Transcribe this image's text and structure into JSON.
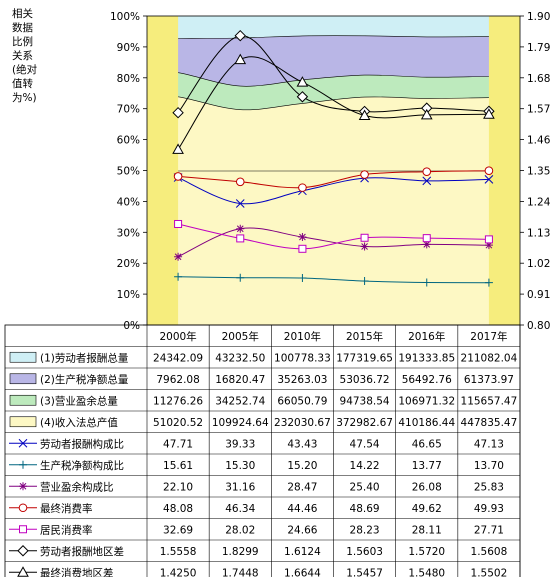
{
  "chart_data": {
    "type": "area",
    "y_axis_title": "相关数据比例关系(绝对值转为%)",
    "categories": [
      "2000年",
      "2005年",
      "2010年",
      "2015年",
      "2016年",
      "2017年"
    ],
    "y_left": {
      "ylim": [
        0,
        100
      ],
      "ticks": [
        "0%",
        "10%",
        "20%",
        "30%",
        "40%",
        "50%",
        "60%",
        "70%",
        "80%",
        "90%",
        "100%"
      ]
    },
    "y_right": {
      "ylim": [
        0.8,
        1.9
      ],
      "ticks": [
        "0.80",
        "0.91",
        "1.02",
        "1.13",
        "1.24",
        "1.35",
        "1.46",
        "1.57",
        "1.68",
        "1.79",
        "1.90"
      ]
    },
    "stacked_shares": {
      "labor": [
        47.71,
        39.33,
        43.43,
        47.54,
        46.65,
        47.13
      ],
      "tax": [
        15.61,
        15.3,
        15.2,
        14.22,
        13.77,
        13.7
      ],
      "surplus": [
        22.1,
        31.16,
        28.47,
        25.4,
        26.08,
        25.83
      ]
    },
    "series": [
      {
        "name": "(1)劳动者报酬总量",
        "color": "#cfeff5",
        "marker": "area",
        "display": [
          "24342.09",
          "43232.50",
          "100778.33",
          "177319.65",
          "191333.85",
          "211082.04"
        ]
      },
      {
        "name": "(2)生产税净额总量",
        "color": "#b9b6e6",
        "marker": "area",
        "display": [
          "7962.08",
          "16820.47",
          "35263.03",
          "53036.72",
          "56492.76",
          "61373.97"
        ]
      },
      {
        "name": "(3)营业盈余总量",
        "color": "#bdeabd",
        "marker": "area",
        "display": [
          "11276.26",
          "34252.74",
          "66050.79",
          "94738.54",
          "106971.32",
          "115657.47"
        ]
      },
      {
        "name": "(4)收入法总产值",
        "color": "#fdf8c4",
        "marker": "area",
        "display": [
          "51020.52",
          "109924.64",
          "232030.67",
          "372982.67",
          "410186.44",
          "447835.47"
        ]
      },
      {
        "name": "劳动者报酬构成比",
        "color": "#0000c0",
        "marker": "x",
        "axis": "left",
        "values": [
          47.71,
          39.33,
          43.43,
          47.54,
          46.65,
          47.13
        ],
        "display": [
          "47.71",
          "39.33",
          "43.43",
          "47.54",
          "46.65",
          "47.13"
        ]
      },
      {
        "name": "生产税净额构成比",
        "color": "#006680",
        "marker": "plus",
        "axis": "left",
        "values": [
          15.61,
          15.3,
          15.2,
          14.22,
          13.77,
          13.7
        ],
        "display": [
          "15.61",
          "15.30",
          "15.20",
          "14.22",
          "13.77",
          "13.70"
        ]
      },
      {
        "name": "营业盈余构成比",
        "color": "#800080",
        "marker": "star",
        "axis": "left",
        "values": [
          22.1,
          31.16,
          28.47,
          25.4,
          26.08,
          25.83
        ],
        "display": [
          "22.10",
          "31.16",
          "28.47",
          "25.40",
          "26.08",
          "25.83"
        ]
      },
      {
        "name": "最终消费率",
        "color": "#c00000",
        "marker": "circle",
        "axis": "left",
        "values": [
          48.08,
          46.34,
          44.46,
          48.69,
          49.62,
          49.93
        ],
        "display": [
          "48.08",
          "46.34",
          "44.46",
          "48.69",
          "49.62",
          "49.93"
        ]
      },
      {
        "name": "居民消费率",
        "color": "#c000c0",
        "marker": "square",
        "axis": "left",
        "values": [
          32.69,
          28.02,
          24.66,
          28.23,
          28.11,
          27.71
        ],
        "display": [
          "32.69",
          "28.02",
          "24.66",
          "28.23",
          "28.11",
          "27.71"
        ]
      },
      {
        "name": "劳动者报酬地区差",
        "color": "#000000",
        "marker": "diamond",
        "axis": "right",
        "values": [
          1.5558,
          1.8299,
          1.6124,
          1.5603,
          1.572,
          1.5608
        ],
        "display": [
          "1.5558",
          "1.8299",
          "1.6124",
          "1.5603",
          "1.5720",
          "1.5608"
        ]
      },
      {
        "name": "最终消费地区差",
        "color": "#000000",
        "marker": "triangle",
        "axis": "right",
        "values": [
          1.425,
          1.7448,
          1.6644,
          1.5457,
          1.548,
          1.5502
        ],
        "display": [
          "1.4250",
          "1.7448",
          "1.6644",
          "1.5457",
          "1.5480",
          "1.5502"
        ]
      }
    ],
    "edge_band_color": "#f6ed7d",
    "legend": "table-below"
  }
}
